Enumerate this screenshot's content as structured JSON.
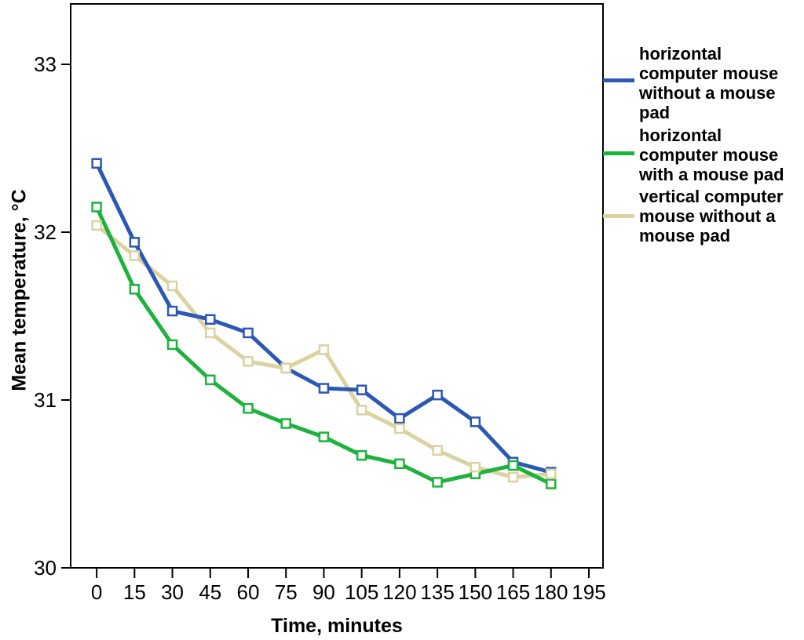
{
  "chart_data": {
    "type": "line",
    "title": "",
    "xlabel": "Time, minutes",
    "ylabel": "Mean temperature, °C",
    "x": [
      0,
      15,
      30,
      45,
      60,
      75,
      90,
      105,
      120,
      135,
      150,
      165,
      180
    ],
    "series": [
      {
        "name": "horizontal computer mouse without a mouse pad",
        "color": "#2B57B5",
        "values": [
          32.41,
          31.94,
          31.53,
          31.48,
          31.4,
          31.19,
          31.07,
          31.06,
          30.89,
          31.03,
          30.87,
          30.63,
          30.57
        ]
      },
      {
        "name": "horizontal computer mouse with a mouse pad",
        "color": "#1CB23B",
        "values": [
          32.15,
          31.66,
          31.33,
          31.12,
          30.95,
          30.86,
          30.78,
          30.67,
          30.62,
          30.51,
          30.56,
          30.61,
          30.5
        ]
      },
      {
        "name": "vertical computer mouse without a mouse pad",
        "color": "#DBD2A0",
        "values": [
          32.04,
          31.86,
          31.68,
          31.4,
          31.23,
          31.19,
          31.3,
          30.94,
          30.83,
          30.7,
          30.6,
          30.54,
          30.56
        ]
      }
    ],
    "x_ticks": [
      0,
      15,
      30,
      45,
      60,
      75,
      90,
      105,
      120,
      135,
      150,
      165,
      180,
      195
    ],
    "y_ticks": [
      30,
      31,
      32,
      33
    ],
    "xlim": [
      -10.3,
      200.6
    ],
    "ylim": [
      30,
      33.36
    ],
    "grid": false,
    "legend_position": "right",
    "marker": "open-square",
    "axis_color": "#000000"
  },
  "legend": {
    "items": [
      {
        "series": "horizontal computer mouse without a mouse pad",
        "color": "#2B57B5",
        "lines": [
          "horizontal",
          "computer mouse",
          "without a mouse",
          "pad"
        ]
      },
      {
        "series": "horizontal computer mouse with a mouse pad",
        "color": "#1CB23B",
        "lines": [
          "horizontal",
          "computer mouse",
          "with a mouse pad"
        ]
      },
      {
        "series": "vertical computer mouse without a mouse pad",
        "color": "#DBD2A0",
        "lines": [
          "vertical computer",
          "mouse without a",
          "mouse pad"
        ]
      }
    ]
  }
}
